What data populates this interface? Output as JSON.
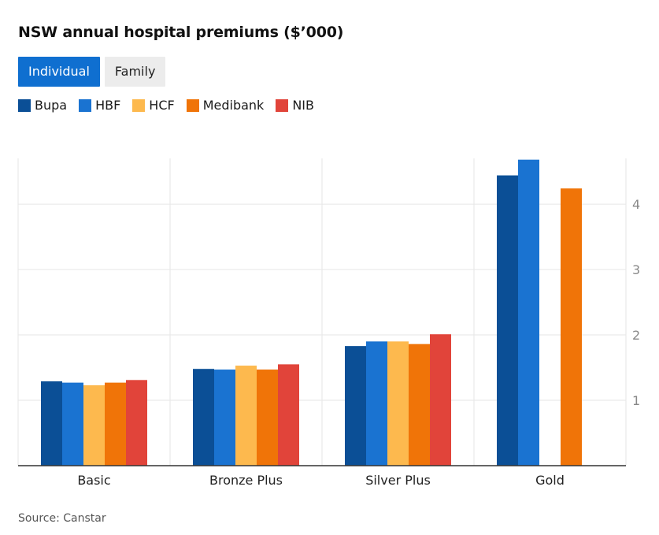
{
  "title": "NSW annual hospital premiums ($’000)",
  "toggle": {
    "options": [
      "Individual",
      "Family"
    ],
    "selected": "Individual"
  },
  "source": "Source: Canstar",
  "colors": {
    "Bupa": "#0b4f96",
    "HBF": "#1a73d1",
    "HCF": "#fdb94e",
    "Medibank": "#f07408",
    "NIB": "#e1443a",
    "active_button": "#0f6fd0",
    "grid": "#e6e6e6",
    "axis": "#333333",
    "tick_label": "#888888"
  },
  "chart_data": {
    "type": "bar",
    "title": "NSW annual hospital premiums ($’000)",
    "xlabel": "",
    "ylabel": "",
    "categories": [
      "Basic",
      "Bronze Plus",
      "Silver Plus",
      "Gold"
    ],
    "yticks": [
      1,
      2,
      3,
      4
    ],
    "ylim": [
      0,
      4.7
    ],
    "grid": true,
    "legend_position": "top-left",
    "y_axis_side": "right",
    "series": [
      {
        "name": "Bupa",
        "values": [
          1.29,
          1.48,
          1.83,
          4.44
        ]
      },
      {
        "name": "HBF",
        "values": [
          1.27,
          1.47,
          1.9,
          4.68
        ]
      },
      {
        "name": "HCF",
        "values": [
          1.23,
          1.53,
          1.9,
          null
        ]
      },
      {
        "name": "Medibank",
        "values": [
          1.27,
          1.47,
          1.86,
          4.24
        ]
      },
      {
        "name": "NIB",
        "values": [
          1.31,
          1.55,
          2.01,
          null
        ]
      }
    ]
  }
}
